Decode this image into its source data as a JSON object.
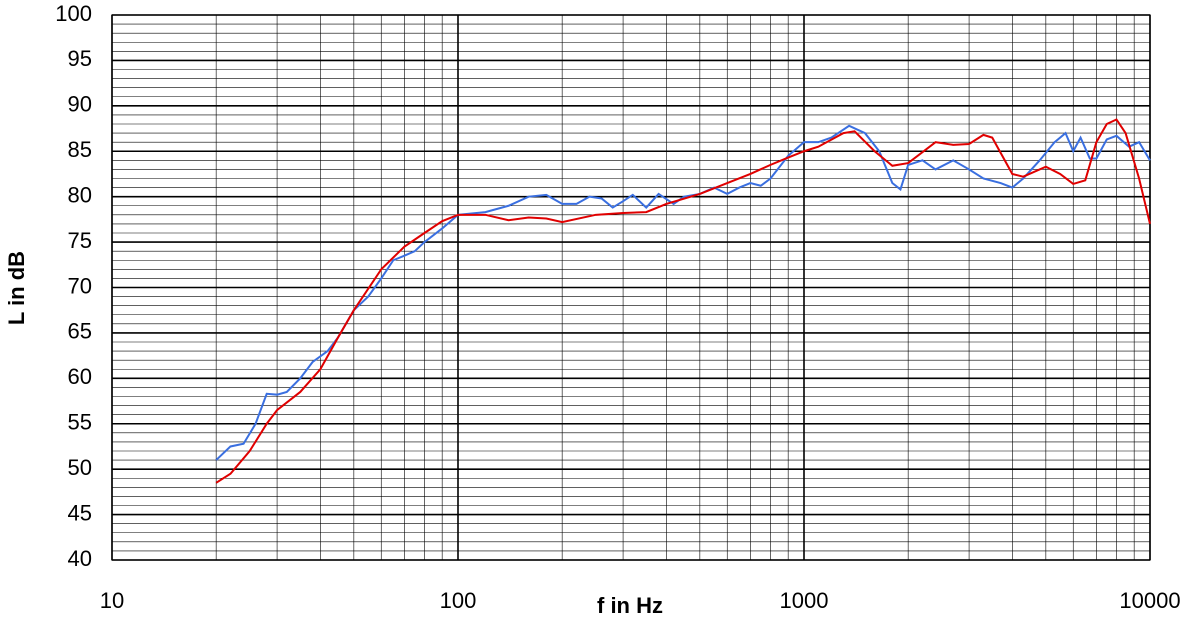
{
  "chart_data": {
    "type": "line",
    "xlabel": "f in Hz",
    "ylabel": "L in dB",
    "xscale": "log",
    "grid": true,
    "minor_grid": true,
    "xlim": [
      10,
      10000
    ],
    "xticks": [
      10,
      100,
      1000,
      10000
    ],
    "ylim": [
      40,
      100
    ],
    "yticks": [
      40,
      45,
      50,
      55,
      60,
      65,
      70,
      75,
      80,
      85,
      90,
      95,
      100
    ],
    "series": [
      {
        "color": "#3a6fe0",
        "x": [
          20,
          22,
          24,
          26,
          28,
          30,
          32,
          35,
          38,
          42,
          45,
          50,
          55,
          60,
          65,
          70,
          75,
          80,
          90,
          100,
          120,
          140,
          160,
          180,
          200,
          220,
          240,
          260,
          280,
          300,
          320,
          350,
          380,
          420,
          450,
          500,
          550,
          600,
          650,
          700,
          750,
          800,
          900,
          1000,
          1100,
          1200,
          1350,
          1500,
          1650,
          1800,
          1900,
          2000,
          2200,
          2400,
          2700,
          3000,
          3300,
          3700,
          4000,
          4300,
          4800,
          5300,
          5700,
          6000,
          6300,
          6700,
          7000,
          7500,
          8000,
          8700,
          9300,
          10000
        ],
        "values": [
          51,
          52.5,
          52.8,
          55,
          58.3,
          58.2,
          58.5,
          60,
          61.8,
          63,
          64.5,
          67.5,
          69,
          71,
          73,
          73.5,
          74,
          75,
          76.5,
          78,
          78.3,
          79,
          80,
          80.2,
          79.2,
          79.2,
          80,
          79.8,
          78.8,
          79.5,
          80.2,
          78.8,
          80.3,
          79.2,
          80,
          80.3,
          81,
          80.3,
          81,
          81.5,
          81.2,
          82,
          84.5,
          86,
          86,
          86.5,
          87.8,
          87,
          85,
          81.5,
          80.8,
          83.5,
          84,
          83,
          84,
          83,
          82,
          81.5,
          81,
          82,
          84,
          86,
          87,
          85,
          86.5,
          84.2,
          84.2,
          86.3,
          86.7,
          85.5,
          86,
          84
        ]
      },
      {
        "color": "#e00000",
        "x": [
          20,
          22,
          25,
          28,
          30,
          35,
          40,
          45,
          50,
          60,
          70,
          80,
          90,
          100,
          120,
          140,
          160,
          180,
          200,
          250,
          300,
          350,
          400,
          500,
          600,
          700,
          800,
          900,
          1000,
          1100,
          1300,
          1400,
          1600,
          1800,
          2000,
          2400,
          2700,
          3000,
          3300,
          3500,
          4000,
          4300,
          5000,
          5500,
          6000,
          6500,
          7000,
          7500,
          8000,
          8500,
          9300,
          10000
        ],
        "values": [
          48.5,
          49.5,
          52,
          55,
          56.5,
          58.5,
          61,
          64.5,
          67.5,
          72,
          74.5,
          76,
          77.3,
          78,
          78,
          77.4,
          77.7,
          77.6,
          77.2,
          78,
          78.2,
          78.3,
          79.2,
          80.3,
          81.5,
          82.5,
          83.5,
          84.3,
          85,
          85.5,
          87,
          87.2,
          85,
          83.4,
          83.7,
          86,
          85.7,
          85.8,
          86.8,
          86.5,
          82.5,
          82.2,
          83.3,
          82.5,
          81.4,
          81.8,
          86,
          88,
          88.5,
          87,
          82,
          77
        ]
      }
    ]
  }
}
